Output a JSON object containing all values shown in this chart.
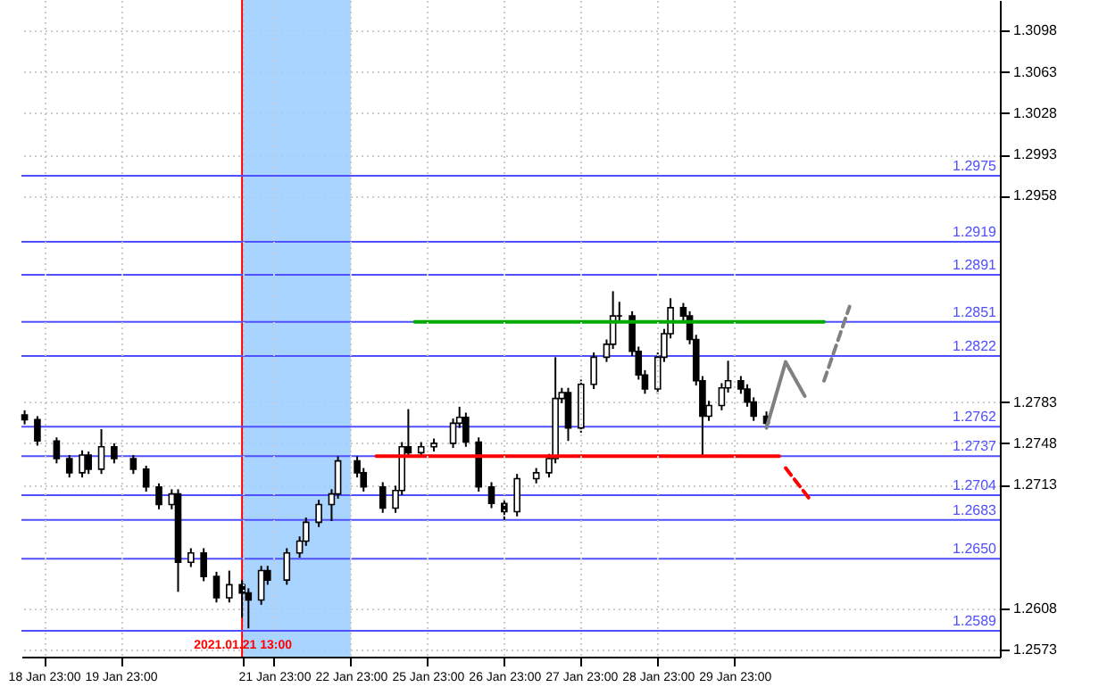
{
  "chart_data": {
    "type": "candlestick",
    "categories": [
      null,
      null,
      null,
      "18 Jan 23:00",
      null,
      null,
      null,
      null,
      null,
      null,
      null,
      null,
      null,
      null,
      null,
      "19 Jan 23:00",
      null,
      null,
      null,
      null,
      null,
      null,
      null,
      null,
      null,
      null,
      null,
      null,
      null,
      null,
      null,
      null,
      null,
      null,
      "2021.01.21 13:00",
      null,
      null,
      null,
      null,
      "21 Jan 23:00",
      null,
      null,
      null,
      null,
      null,
      null,
      null,
      null,
      null,
      null,
      null,
      "22 Jan 23:00",
      null,
      null,
      null,
      null,
      null,
      null,
      null,
      null,
      null,
      null,
      null,
      "25 Jan 23:00",
      null,
      null,
      null,
      null,
      null,
      null,
      null,
      null,
      null,
      null,
      null,
      "26 Jan 23:00",
      null,
      null,
      null,
      null,
      null,
      null,
      null,
      null,
      null,
      null,
      null,
      "27 Jan 23:00",
      null,
      null,
      null,
      null,
      null,
      null,
      null,
      null,
      null,
      null,
      null,
      "28 Jan 23:00",
      null,
      null,
      null,
      null,
      null,
      null,
      null,
      null,
      null,
      null,
      null,
      "29 Jan 23:00",
      null,
      null,
      null,
      null,
      null,
      null,
      null,
      null,
      null,
      null,
      null,
      null,
      null,
      null,
      null,
      null,
      null,
      null,
      null,
      null,
      null,
      null,
      null,
      null,
      null,
      null,
      null,
      null,
      null,
      null,
      null,
      null,
      null,
      null,
      null,
      null,
      null,
      null,
      null,
      null,
      null
    ],
    "ylim": [
      1.2567,
      1.3124
    ],
    "yticks": [
      1.3098,
      1.3063,
      1.3028,
      1.2993,
      1.2958,
      1.2783,
      1.2748,
      1.2713,
      1.2608,
      1.2573
    ],
    "grid": true,
    "bands": [
      {
        "axis": "x",
        "from": "2021.01.21 13:00",
        "to": "22 Jan 23:00",
        "color": "#99ccff"
      }
    ],
    "ref_lines": [
      {
        "axis": "x",
        "value": "2021.01.21 13:00",
        "color": "#ff0000"
      },
      {
        "axis": "y",
        "value": 1.2975,
        "label": "1.2975",
        "color": "#5050ff"
      },
      {
        "axis": "y",
        "value": 1.2919,
        "label": "1.2919",
        "color": "#5050ff"
      },
      {
        "axis": "y",
        "value": 1.2891,
        "label": "1.2891",
        "color": "#5050ff"
      },
      {
        "axis": "y",
        "value": 1.2851,
        "label": "1.2851",
        "color": "#5050ff"
      },
      {
        "axis": "y",
        "value": 1.2822,
        "label": "1.2822",
        "color": "#5050ff"
      },
      {
        "axis": "y",
        "value": 1.2762,
        "label": "1.2762",
        "color": "#5050ff"
      },
      {
        "axis": "y",
        "value": 1.2737,
        "label": "1.2737",
        "color": "#5050ff"
      },
      {
        "axis": "y",
        "value": 1.2704,
        "label": "1.2704",
        "color": "#5050ff"
      },
      {
        "axis": "y",
        "value": 1.2683,
        "label": "1.2683",
        "color": "#5050ff"
      },
      {
        "axis": "y",
        "value": 1.265,
        "label": "1.2650",
        "color": "#5050ff"
      },
      {
        "axis": "y",
        "value": 1.2589,
        "label": "1.2589",
        "color": "#5050ff"
      }
    ],
    "series": [
      {
        "type": "candlestick",
        "color": "#000000",
        "ohlc": [
          [
            1.2772,
            1.2776,
            1.2764,
            1.2768
          ],
          null,
          [
            1.2768,
            1.2771,
            1.2746,
            1.275
          ],
          null,
          null,
          [
            1.275,
            1.2753,
            1.2731,
            1.2735
          ],
          null,
          [
            1.2735,
            1.2738,
            1.2719,
            1.2723
          ],
          null,
          [
            1.2723,
            1.2742,
            1.2719,
            1.2738
          ],
          [
            1.2738,
            1.2741,
            1.2722,
            1.2726
          ],
          null,
          [
            1.2726,
            1.276,
            1.2722,
            1.2745
          ],
          null,
          [
            1.2745,
            1.2748,
            1.2731,
            1.2735
          ],
          null,
          null,
          [
            1.2735,
            1.2738,
            1.2722,
            1.2726
          ],
          null,
          [
            1.2726,
            1.2729,
            1.2707,
            1.2711
          ],
          null,
          [
            1.2711,
            1.2714,
            1.2692,
            1.2696
          ],
          null,
          [
            1.2696,
            1.2709,
            1.2692,
            1.2705
          ],
          [
            1.2705,
            1.2709,
            1.2622,
            1.2647
          ],
          null,
          [
            1.2647,
            1.2659,
            1.2643,
            1.2655
          ],
          null,
          [
            1.2655,
            1.2659,
            1.2631,
            1.2635
          ],
          null,
          [
            1.2635,
            1.2639,
            1.2613,
            1.2617
          ],
          null,
          [
            1.2617,
            1.264,
            1.2613,
            1.2628
          ],
          null,
          [
            1.2628,
            1.2632,
            1.26,
            1.2621
          ],
          [
            1.2621,
            1.2625,
            1.2591,
            1.2615
          ],
          null,
          [
            1.2615,
            1.2644,
            1.2611,
            1.264
          ],
          [
            1.264,
            1.2644,
            1.2628,
            1.2632
          ],
          null,
          null,
          [
            1.2632,
            1.2659,
            1.2628,
            1.2655
          ],
          null,
          [
            1.2655,
            1.2669,
            1.2651,
            1.2665
          ],
          [
            1.2665,
            1.2685,
            1.2661,
            1.2681
          ],
          null,
          [
            1.2681,
            1.27,
            1.2677,
            1.2696
          ],
          null,
          [
            1.2696,
            1.2709,
            1.2682,
            1.2705
          ],
          [
            1.2705,
            1.2737,
            1.2701,
            1.2733
          ],
          null,
          null,
          [
            1.2733,
            1.2737,
            1.2719,
            1.2723
          ],
          [
            1.2723,
            1.2727,
            1.2707,
            1.2711
          ],
          null,
          null,
          [
            1.2711,
            1.2715,
            1.2689,
            1.2693
          ],
          null,
          [
            1.2693,
            1.2712,
            1.2689,
            1.2708
          ],
          [
            1.2708,
            1.2749,
            1.2704,
            1.2745
          ],
          [
            1.2745,
            1.2777,
            1.2736,
            1.274
          ],
          null,
          [
            1.274,
            1.2749,
            1.2736,
            1.2745
          ],
          null,
          [
            1.2745,
            1.2752,
            1.2741,
            1.2748
          ],
          null,
          null,
          [
            1.2748,
            1.2769,
            1.2744,
            1.2765
          ],
          [
            1.2765,
            1.2779,
            1.2761,
            1.277
          ],
          [
            1.277,
            1.2774,
            1.2745,
            1.2749
          ],
          null,
          [
            1.2749,
            1.2753,
            1.2707,
            1.2711
          ],
          null,
          [
            1.2711,
            1.2715,
            1.2693,
            1.2697
          ],
          null,
          [
            1.2697,
            1.2701,
            1.2683,
            1.269
          ],
          null,
          [
            1.269,
            1.2722,
            1.2686,
            1.2718
          ],
          null,
          null,
          [
            1.2718,
            1.2727,
            1.2714,
            1.2723
          ],
          null,
          [
            1.2723,
            1.2739,
            1.2719,
            1.2735
          ],
          [
            1.2735,
            1.2821,
            1.2731,
            1.2786
          ],
          [
            1.2786,
            1.2795,
            1.2782,
            1.2791
          ],
          [
            1.2791,
            1.2795,
            1.275,
            1.2761
          ],
          null,
          [
            1.2761,
            1.2802,
            1.2757,
            1.2798
          ],
          null,
          [
            1.2798,
            1.2825,
            1.2794,
            1.2821
          ],
          null,
          [
            1.2821,
            1.2836,
            1.2817,
            1.2832
          ],
          [
            1.2832,
            1.2877,
            1.2828,
            1.2856
          ],
          [
            1.2856,
            1.2868,
            1.285,
            1.2856
          ],
          null,
          [
            1.2856,
            1.286,
            1.2822,
            1.2826
          ],
          [
            1.2826,
            1.283,
            1.2802,
            1.2806
          ],
          [
            1.2806,
            1.281,
            1.279,
            1.2794
          ],
          null,
          [
            1.2794,
            1.2825,
            1.279,
            1.2821
          ],
          [
            1.2821,
            1.2845,
            1.2817,
            1.2841
          ],
          [
            1.2841,
            1.2871,
            1.2837,
            1.2863
          ],
          null,
          [
            1.2863,
            1.2867,
            1.2852,
            1.2856
          ],
          [
            1.2856,
            1.286,
            1.2832,
            1.2836
          ],
          [
            1.2836,
            1.284,
            1.2797,
            1.2801
          ],
          [
            1.2801,
            1.2805,
            1.2738,
            1.2771
          ],
          [
            1.2771,
            1.2784,
            1.2767,
            1.278
          ],
          null,
          [
            1.278,
            1.2799,
            1.2776,
            1.2795
          ],
          [
            1.2795,
            1.2818,
            1.2791,
            1.2801
          ],
          null,
          [
            1.2801,
            1.2805,
            1.279,
            1.2794
          ],
          [
            1.2794,
            1.2798,
            1.2779,
            1.2783
          ],
          [
            1.2783,
            1.2787,
            1.2767,
            1.2771
          ],
          null,
          [
            1.2771,
            1.2775,
            1.2761,
            1.2765
          ],
          null,
          null,
          null,
          null,
          null,
          null,
          null,
          null,
          null,
          null,
          null,
          null,
          null,
          null,
          null,
          null,
          null,
          null,
          null,
          null,
          null,
          null,
          null,
          null,
          null,
          null,
          null,
          null,
          null,
          null,
          null,
          null,
          null,
          null,
          null,
          null
        ]
      },
      {
        "type": "line",
        "color": "#00aa00",
        "values": [
          null,
          null,
          null,
          null,
          null,
          null,
          null,
          null,
          null,
          null,
          null,
          null,
          null,
          null,
          null,
          null,
          null,
          null,
          null,
          null,
          null,
          null,
          null,
          null,
          null,
          null,
          null,
          null,
          null,
          null,
          null,
          null,
          null,
          null,
          null,
          null,
          null,
          null,
          null,
          null,
          null,
          null,
          null,
          null,
          null,
          null,
          null,
          null,
          null,
          null,
          null,
          null,
          null,
          null,
          null,
          null,
          null,
          null,
          null,
          null,
          null,
          1.2851,
          null,
          null,
          null,
          null,
          null,
          null,
          null,
          null,
          null,
          null,
          null,
          null,
          null,
          null,
          null,
          null,
          null,
          null,
          null,
          null,
          null,
          null,
          null,
          null,
          null,
          null,
          null,
          null,
          null,
          null,
          null,
          null,
          null,
          null,
          null,
          null,
          null,
          null,
          null,
          null,
          null,
          null,
          null,
          null,
          null,
          null,
          null,
          null,
          null,
          null,
          null,
          null,
          null,
          null,
          null,
          null,
          null,
          null,
          null,
          null,
          null,
          null,
          null,
          1.2851,
          null,
          null,
          null,
          null,
          null,
          null,
          null,
          null,
          null,
          null,
          null,
          null,
          null,
          null,
          null,
          null,
          null,
          null,
          null,
          null,
          null,
          null,
          null,
          null,
          null,
          null,
          null
        ]
      },
      {
        "type": "line",
        "color": "#ff0000",
        "values": [
          null,
          null,
          null,
          null,
          null,
          null,
          null,
          null,
          null,
          null,
          null,
          null,
          null,
          null,
          null,
          null,
          null,
          null,
          null,
          null,
          null,
          null,
          null,
          null,
          null,
          null,
          null,
          null,
          null,
          null,
          null,
          null,
          null,
          null,
          null,
          null,
          null,
          null,
          null,
          null,
          null,
          null,
          null,
          null,
          null,
          null,
          null,
          null,
          null,
          null,
          null,
          null,
          null,
          null,
          null,
          1.2737,
          null,
          null,
          null,
          null,
          null,
          null,
          null,
          null,
          null,
          null,
          null,
          null,
          null,
          null,
          null,
          null,
          null,
          null,
          null,
          null,
          null,
          null,
          null,
          null,
          null,
          null,
          null,
          null,
          null,
          null,
          null,
          null,
          null,
          null,
          null,
          null,
          null,
          null,
          null,
          null,
          null,
          null,
          null,
          null,
          null,
          null,
          null,
          null,
          null,
          null,
          null,
          null,
          null,
          null,
          null,
          null,
          null,
          null,
          null,
          null,
          null,
          null,
          1.2737,
          null,
          null,
          null,
          null,
          null,
          null,
          null,
          null,
          null,
          null,
          null,
          null,
          null,
          null,
          null,
          null,
          null,
          null,
          null,
          null,
          null,
          null,
          null,
          null,
          null,
          null,
          null,
          null,
          null,
          null,
          null,
          null,
          null,
          null
        ]
      },
      {
        "type": "line",
        "color": "#808080",
        "values": [
          null,
          null,
          null,
          null,
          null,
          null,
          null,
          null,
          null,
          null,
          null,
          null,
          null,
          null,
          null,
          null,
          null,
          null,
          null,
          null,
          null,
          null,
          null,
          null,
          null,
          null,
          null,
          null,
          null,
          null,
          null,
          null,
          null,
          null,
          null,
          null,
          null,
          null,
          null,
          null,
          null,
          null,
          null,
          null,
          null,
          null,
          null,
          null,
          null,
          null,
          null,
          null,
          null,
          null,
          null,
          null,
          null,
          null,
          null,
          null,
          null,
          null,
          null,
          null,
          null,
          null,
          null,
          null,
          null,
          null,
          null,
          null,
          null,
          null,
          null,
          null,
          null,
          null,
          null,
          null,
          null,
          null,
          null,
          null,
          null,
          null,
          null,
          null,
          null,
          null,
          null,
          null,
          null,
          null,
          null,
          null,
          null,
          null,
          null,
          null,
          null,
          null,
          null,
          null,
          null,
          null,
          null,
          null,
          null,
          null,
          null,
          null,
          null,
          null,
          null,
          null,
          1.2761,
          null,
          null,
          1.2817,
          null,
          null,
          1.2788,
          null,
          null,
          null,
          null,
          null,
          null,
          null,
          null,
          null,
          null,
          null,
          null,
          null,
          null,
          null,
          null,
          null,
          null,
          null,
          null,
          null,
          null,
          null,
          null,
          null,
          null,
          null,
          null,
          null,
          null
        ]
      },
      {
        "type": "line",
        "color": "#808080",
        "line_style": "dashed",
        "values": [
          null,
          null,
          null,
          null,
          null,
          null,
          null,
          null,
          null,
          null,
          null,
          null,
          null,
          null,
          null,
          null,
          null,
          null,
          null,
          null,
          null,
          null,
          null,
          null,
          null,
          null,
          null,
          null,
          null,
          null,
          null,
          null,
          null,
          null,
          null,
          null,
          null,
          null,
          null,
          null,
          null,
          null,
          null,
          null,
          null,
          null,
          null,
          null,
          null,
          null,
          null,
          null,
          null,
          null,
          null,
          null,
          null,
          null,
          null,
          null,
          null,
          null,
          null,
          null,
          null,
          null,
          null,
          null,
          null,
          null,
          null,
          null,
          null,
          null,
          null,
          null,
          null,
          null,
          null,
          null,
          null,
          null,
          null,
          null,
          null,
          null,
          null,
          null,
          null,
          null,
          null,
          null,
          null,
          null,
          null,
          null,
          null,
          null,
          null,
          null,
          null,
          null,
          null,
          null,
          null,
          null,
          null,
          null,
          null,
          null,
          null,
          null,
          null,
          null,
          null,
          null,
          null,
          null,
          null,
          null,
          null,
          null,
          null,
          null,
          null,
          1.2801,
          null,
          null,
          null,
          1.2864,
          null,
          null,
          null,
          null,
          null,
          null,
          null,
          null,
          null,
          null,
          null,
          null,
          null,
          null,
          null,
          null,
          null,
          null,
          null,
          null,
          null,
          null,
          null
        ]
      },
      {
        "type": "line",
        "color": "#ff0000",
        "line_style": "dashed",
        "values": [
          null,
          null,
          null,
          null,
          null,
          null,
          null,
          null,
          null,
          null,
          null,
          null,
          null,
          null,
          null,
          null,
          null,
          null,
          null,
          null,
          null,
          null,
          null,
          null,
          null,
          null,
          null,
          null,
          null,
          null,
          null,
          null,
          null,
          null,
          null,
          null,
          null,
          null,
          null,
          null,
          null,
          null,
          null,
          null,
          null,
          null,
          null,
          null,
          null,
          null,
          null,
          null,
          null,
          null,
          null,
          null,
          null,
          null,
          null,
          null,
          null,
          null,
          null,
          null,
          null,
          null,
          null,
          null,
          null,
          null,
          null,
          null,
          null,
          null,
          null,
          null,
          null,
          null,
          null,
          null,
          null,
          null,
          null,
          null,
          null,
          null,
          null,
          null,
          null,
          null,
          null,
          null,
          null,
          null,
          null,
          null,
          null,
          null,
          null,
          null,
          null,
          null,
          null,
          null,
          null,
          null,
          null,
          null,
          null,
          null,
          null,
          null,
          null,
          null,
          null,
          null,
          null,
          null,
          null,
          1.2727,
          null,
          null,
          null,
          1.2699,
          null,
          null,
          null,
          null,
          null,
          null,
          null,
          null,
          null,
          null,
          null,
          null,
          null,
          null,
          null,
          null,
          null,
          null,
          null,
          null,
          null,
          null,
          null,
          null,
          null,
          null,
          null,
          null,
          null
        ]
      }
    ]
  }
}
